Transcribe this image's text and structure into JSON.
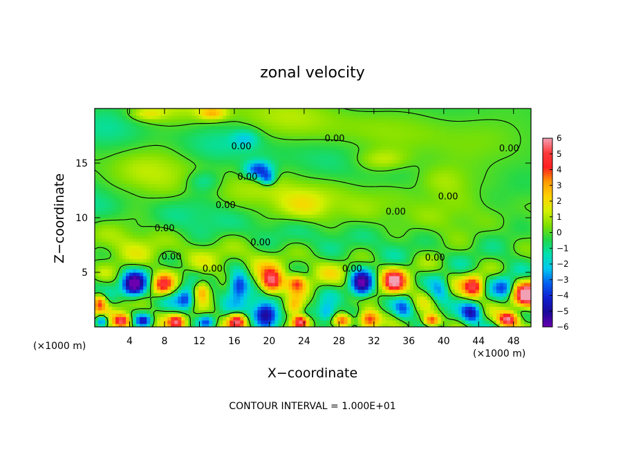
{
  "chart_data": {
    "type": "heatmap",
    "title": "zonal velocity",
    "xlabel": "X−coordinate",
    "ylabel": "Z−coordinate",
    "x_unit_label_left": "(×1000 m)",
    "x_unit_label_right": "(×1000 m)",
    "xlim": [
      0,
      50
    ],
    "ylim": [
      0,
      20
    ],
    "x_ticks": [
      4,
      8,
      12,
      16,
      20,
      24,
      28,
      32,
      36,
      40,
      44,
      48
    ],
    "y_ticks": [
      5,
      10,
      15
    ],
    "x_tick_labels": [
      "4",
      "8",
      "12",
      "16",
      "20",
      "24",
      "28",
      "32",
      "36",
      "40",
      "44",
      "48"
    ],
    "y_tick_labels": [
      "5",
      "10",
      "15"
    ],
    "colorbar": {
      "min": -6,
      "max": 6,
      "ticks": [
        6,
        5,
        4,
        3,
        2,
        1,
        0,
        -1,
        -2,
        -3,
        -4,
        -5,
        -6
      ],
      "tick_labels": [
        "6",
        "5",
        "4",
        "3",
        "2",
        "1",
        "0",
        "−1",
        "−2",
        "−3",
        "−4",
        "−5",
        "−6"
      ],
      "colors": [
        "#f2a0b4",
        "#ff3b3b",
        "#ff2020",
        "#ff9a00",
        "#ffd200",
        "#d6f000",
        "#7fe000",
        "#22d84a",
        "#00e0b0",
        "#00c8f0",
        "#0060f0",
        "#1020d0",
        "#1a0a9a",
        "#6a00b0"
      ]
    },
    "contour_level": 0.0,
    "contour_labels": [
      "0.00",
      "0.00",
      "0.00",
      "0.00",
      "0.00",
      "0.00",
      "0.00",
      "0.00",
      "0.00",
      "0.00",
      "0.00",
      "0.00",
      "0.00"
    ],
    "footnote": "CONTOUR INTERVAL = 1.000E+01",
    "grid": false,
    "legend": "colorbar-right"
  }
}
